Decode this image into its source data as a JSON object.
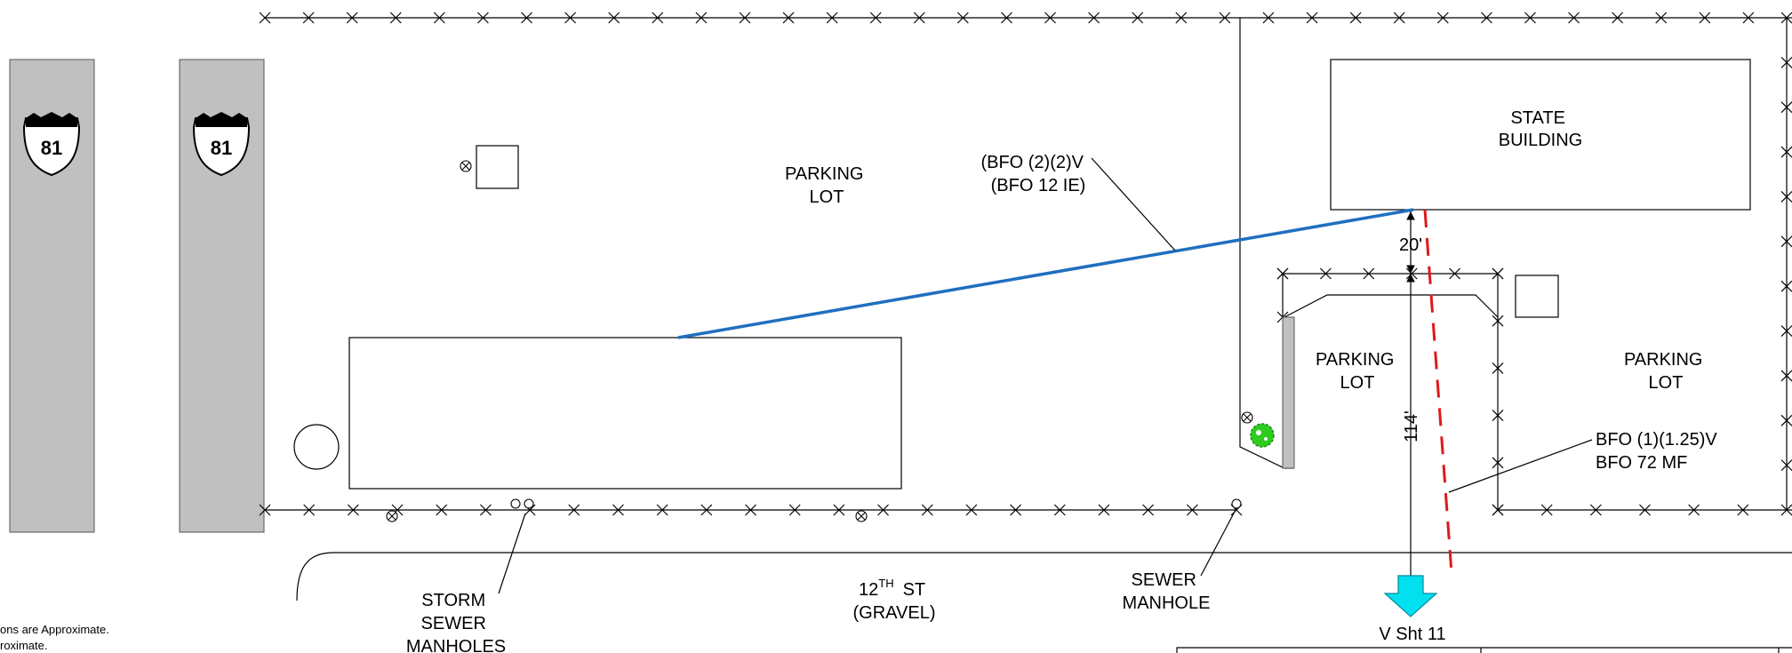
{
  "labels": {
    "parking_lot_top": [
      "PARKING",
      "LOT"
    ],
    "parking_lot_mid": [
      "PARKING",
      "LOT"
    ],
    "parking_lot_right": [
      "PARKING",
      "LOT"
    ],
    "state_building": [
      "STATE",
      "BUILDING"
    ],
    "fiber_top": [
      "(BFO (2)(2)V",
      "(BFO 12 IE)"
    ],
    "fiber_right": [
      "BFO (1)(1.25)V",
      "BFO 72 MF"
    ],
    "storm_sewer": [
      "STORM",
      "SEWER",
      "MANHOLES"
    ],
    "sewer_manhole": [
      "SEWER",
      "MANHOLE"
    ],
    "street": {
      "name": "12",
      "suffix": "TH",
      "type": "ST",
      "surface": "(GRAVEL)"
    },
    "dim_20": "20'",
    "dim_114": "114'",
    "view_ref": "V Sht 11"
  },
  "highway": {
    "route": "81"
  },
  "notes": [
    "ons are Approximate.",
    "roximate."
  ],
  "colors": {
    "fiber": "#1f6fbf",
    "survey": "#e0191b",
    "arrow": "#00e0ee",
    "shrub": "#2ecc1f",
    "road": "#c0c0c0"
  }
}
